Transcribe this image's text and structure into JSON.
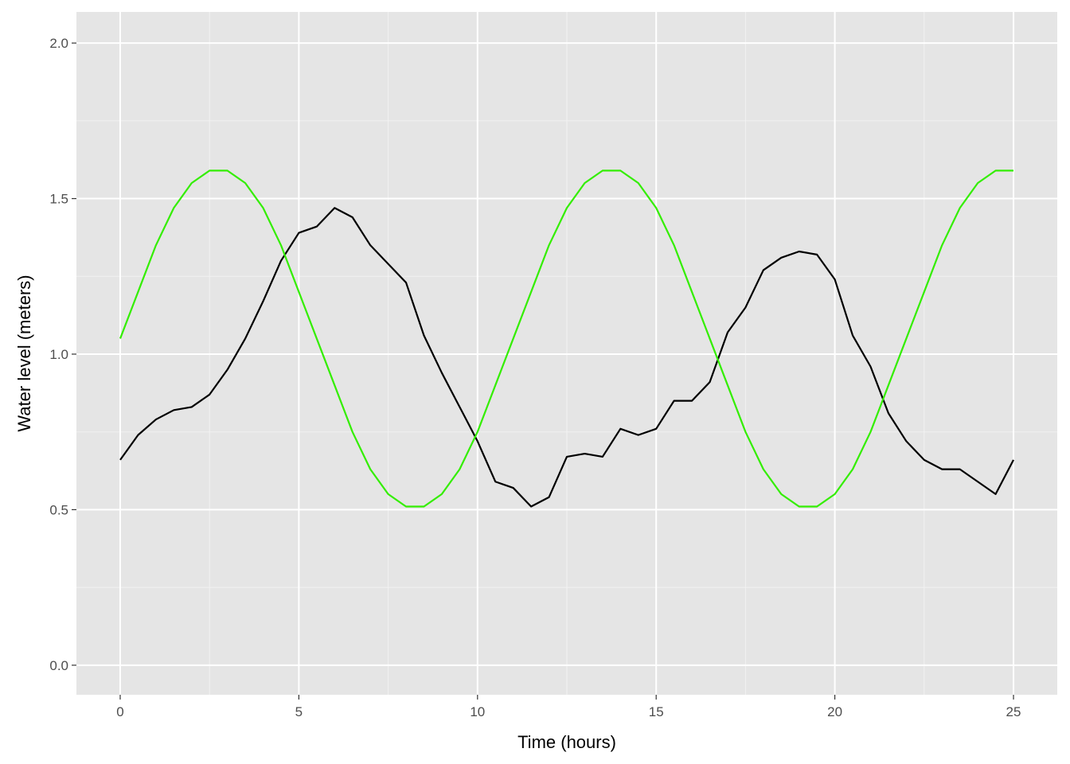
{
  "chart_data": {
    "type": "line",
    "x_label": "Time (hours)",
    "y_label": "Water level (meters)",
    "x": [
      0,
      0.5,
      1,
      1.5,
      2,
      2.5,
      3,
      3.5,
      4,
      4.5,
      5,
      5.5,
      6,
      6.5,
      7,
      7.5,
      8,
      8.5,
      9,
      9.5,
      10,
      10.5,
      11,
      11.5,
      12,
      12.5,
      13,
      13.5,
      14,
      14.5,
      15,
      15.5,
      16,
      16.5,
      17,
      17.5,
      18,
      18.5,
      19,
      19.5,
      20,
      20.5,
      21,
      21.5,
      22,
      22.5,
      23,
      23.5,
      24,
      24.5,
      25
    ],
    "series": [
      {
        "color": "#000000",
        "values": [
          0.66,
          0.74,
          0.79,
          0.82,
          0.83,
          0.87,
          0.95,
          1.05,
          1.17,
          1.3,
          1.39,
          1.41,
          1.47,
          1.44,
          1.35,
          1.29,
          1.23,
          1.06,
          0.94,
          0.83,
          0.72,
          0.59,
          0.57,
          0.51,
          0.54,
          0.67,
          0.68,
          0.67,
          0.76,
          0.74,
          0.76,
          0.85,
          0.85,
          0.91,
          1.07,
          1.15,
          1.27,
          1.31,
          1.33,
          1.32,
          1.24,
          1.06,
          0.96,
          0.81,
          0.72,
          0.66,
          0.63,
          0.63,
          0.59,
          0.55,
          0.66
        ]
      },
      {
        "color": "#33ee00",
        "values": [
          1.05,
          1.2,
          1.35,
          1.47,
          1.55,
          1.59,
          1.59,
          1.55,
          1.47,
          1.35,
          1.2,
          1.05,
          0.9,
          0.75,
          0.63,
          0.55,
          0.51,
          0.51,
          0.55,
          0.63,
          0.75,
          0.9,
          1.05,
          1.2,
          1.35,
          1.47,
          1.55,
          1.59,
          1.59,
          1.55,
          1.47,
          1.35,
          1.2,
          1.05,
          0.9,
          0.75,
          0.63,
          0.55,
          0.51,
          0.51,
          0.55,
          0.63,
          0.75,
          0.9,
          1.05,
          1.2,
          1.35,
          1.47,
          1.55,
          1.59,
          1.59
        ]
      }
    ],
    "xlim": [
      -1.225,
      26.225
    ],
    "ylim": [
      -0.095,
      2.1
    ],
    "xticks": [
      0,
      5,
      10,
      15,
      20,
      25
    ],
    "yticks": [
      {
        "value": 0,
        "label": "0.0"
      },
      0.5,
      {
        "value": 1,
        "label": "1.0"
      },
      1.5,
      {
        "value": 2,
        "label": "2.0"
      }
    ],
    "grid": true
  }
}
